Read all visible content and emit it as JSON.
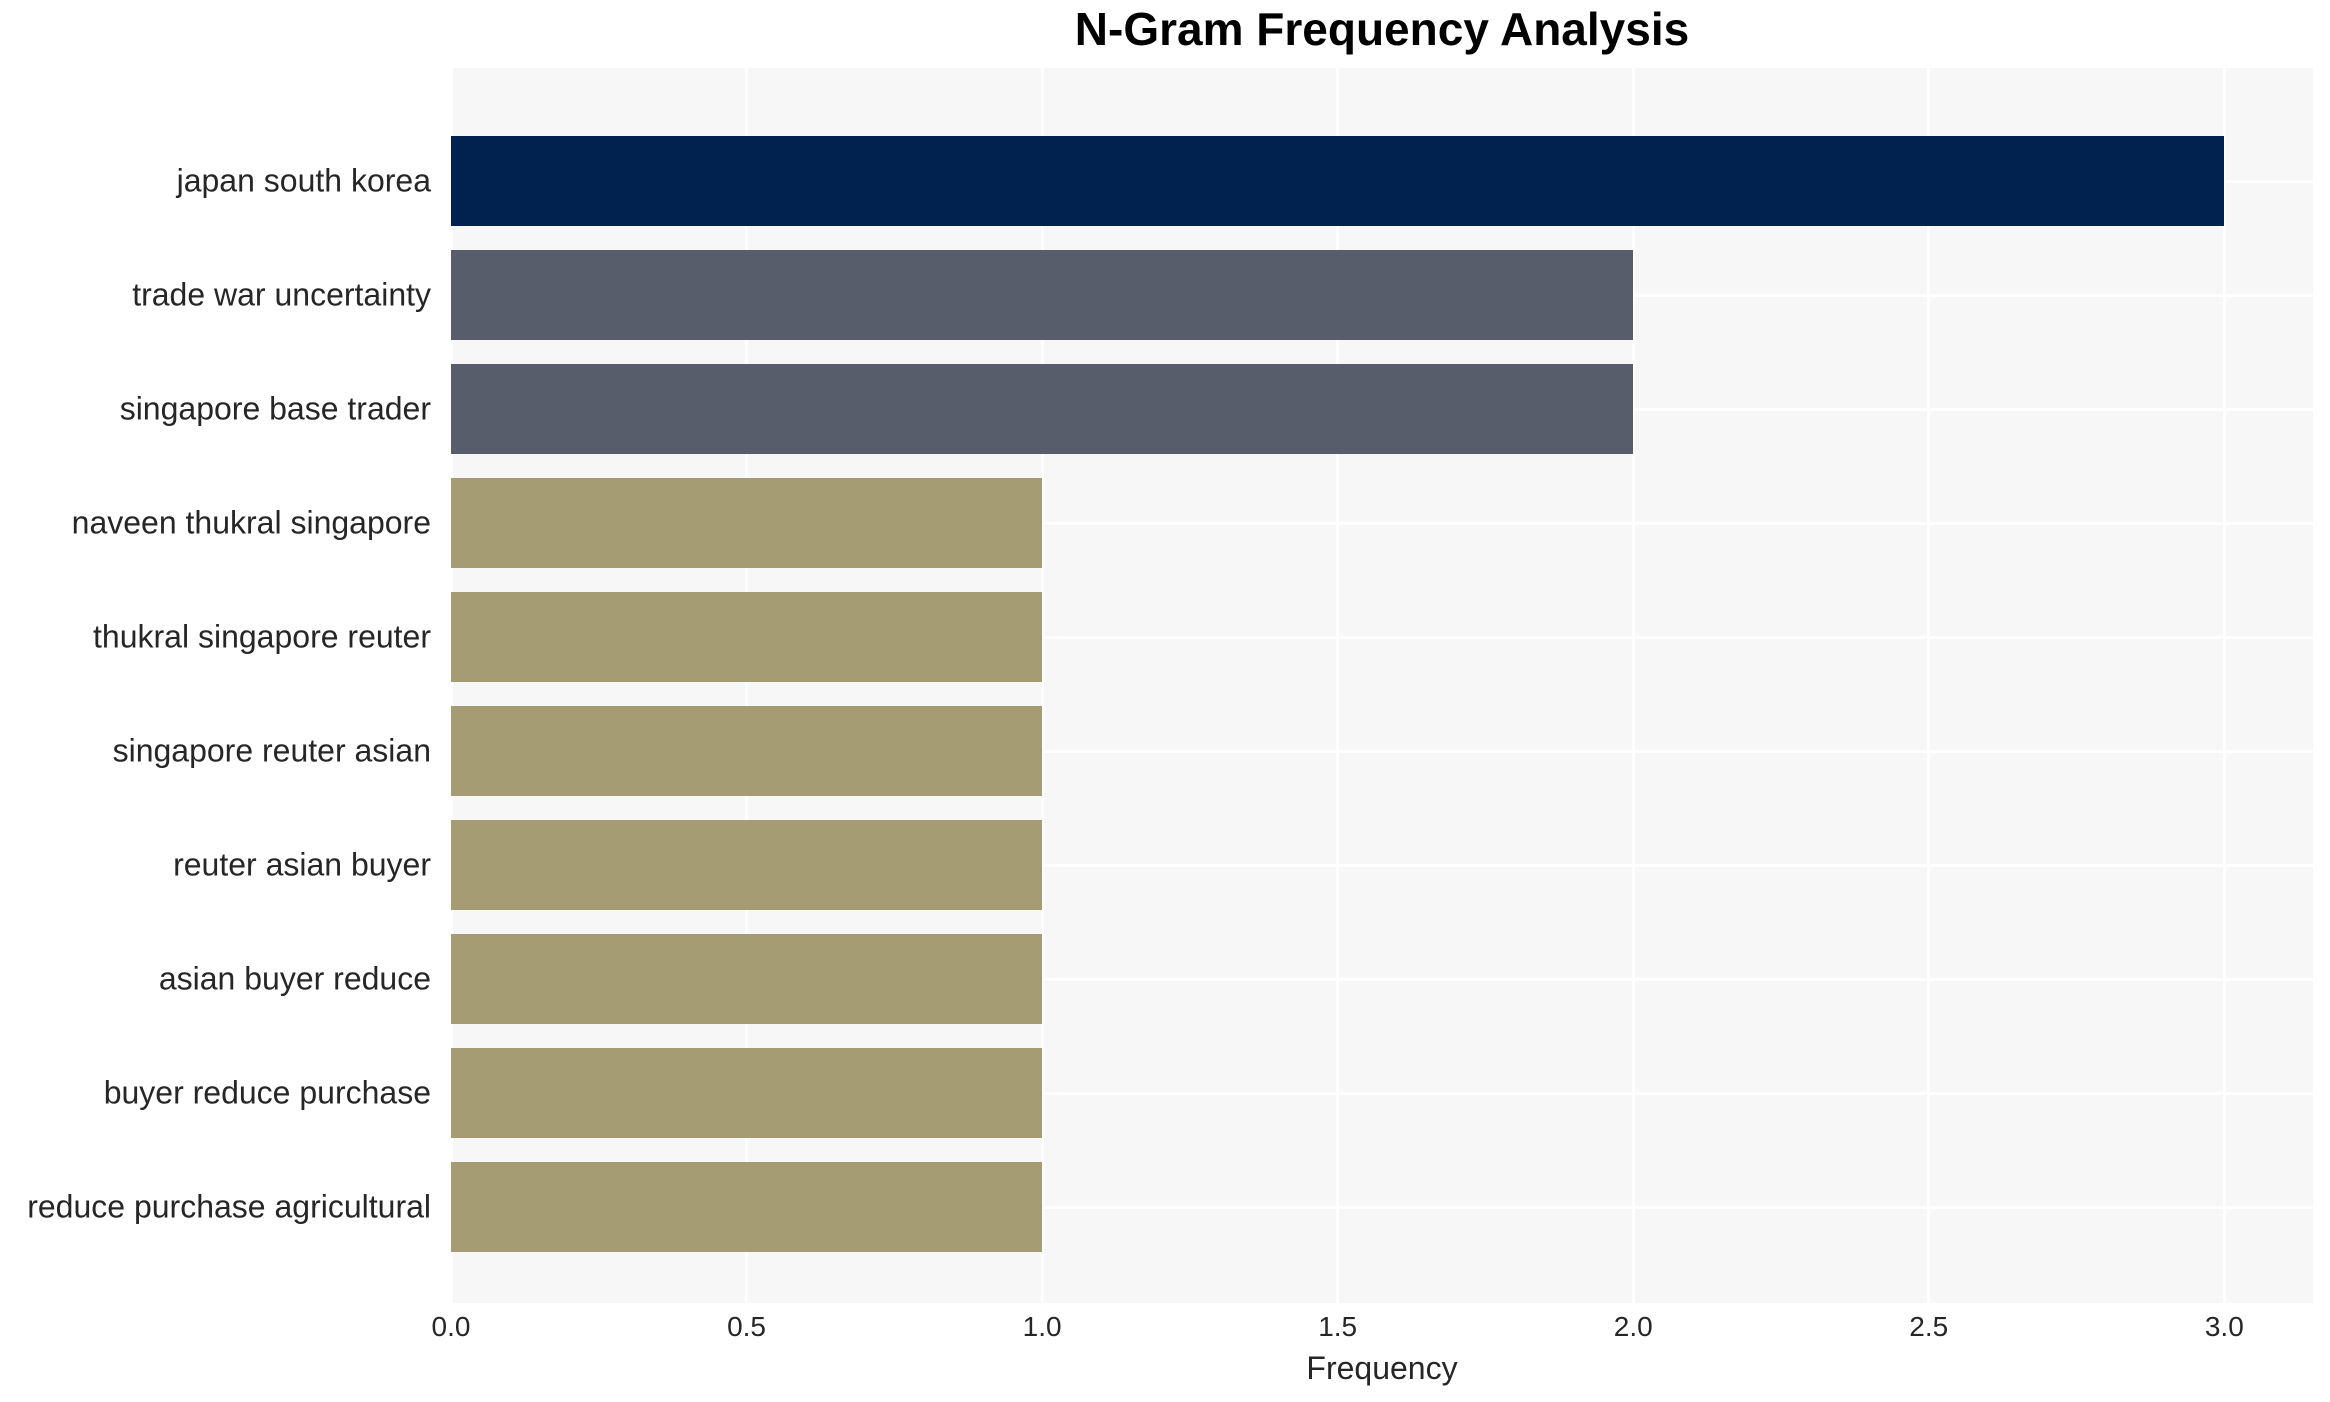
{
  "colors": {
    "figure_background": "#ffffff",
    "plot_background": "#f7f7f7",
    "grid_color": "#ffffff",
    "text_color": "#262626",
    "title_color": "#000000",
    "bar_navy": "#01214e",
    "bar_gray": "#575d6b",
    "bar_khaki": "#a59c74"
  },
  "chart_data": {
    "type": "bar",
    "orientation": "horizontal",
    "title": "N-Gram Frequency Analysis",
    "xlabel": "Frequency",
    "ylabel": "",
    "grid": true,
    "legend_position": "none",
    "xlim": [
      0,
      3.15
    ],
    "categories": [
      "japan south korea",
      "trade war uncertainty",
      "singapore base trader",
      "naveen thukral singapore",
      "thukral singapore reuter",
      "singapore reuter asian",
      "reuter asian buyer",
      "asian buyer reduce",
      "buyer reduce purchase",
      "reduce purchase agricultural"
    ],
    "values": [
      3,
      2,
      2,
      1,
      1,
      1,
      1,
      1,
      1,
      1
    ],
    "bar_colors": [
      "#01214e",
      "#575d6b",
      "#575d6b",
      "#a59c74",
      "#a59c74",
      "#a59c74",
      "#a59c74",
      "#a59c74",
      "#a59c74",
      "#a59c74"
    ],
    "xticks": [
      "0.0",
      "0.5",
      "1.0",
      "1.5",
      "2.0",
      "2.5",
      "3.0"
    ],
    "xtick_values": [
      0,
      0.5,
      1,
      1.5,
      2,
      2.5,
      3
    ]
  }
}
